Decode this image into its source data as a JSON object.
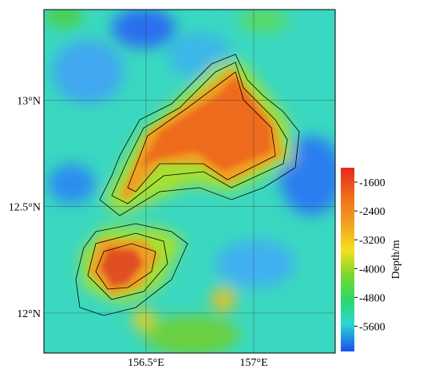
{
  "map": {
    "xlim": [
      156.026,
      157.378
    ],
    "ylim": [
      11.812,
      13.425
    ],
    "xticks": [
      {
        "value": 156.5,
        "label": "156.5°E"
      },
      {
        "value": 157,
        "label": "157°E"
      }
    ],
    "yticks": [
      {
        "value": 13,
        "label": "13°N"
      },
      {
        "value": 12.5,
        "label": "12.5°N"
      },
      {
        "value": 12,
        "label": "12°N"
      }
    ],
    "colorbar": {
      "label": "Depth/m",
      "lim": [
        -6300,
        -1200
      ],
      "ticks": [
        -1600,
        -2400,
        -3200,
        -4000,
        -4800,
        -5600
      ]
    }
  }
}
